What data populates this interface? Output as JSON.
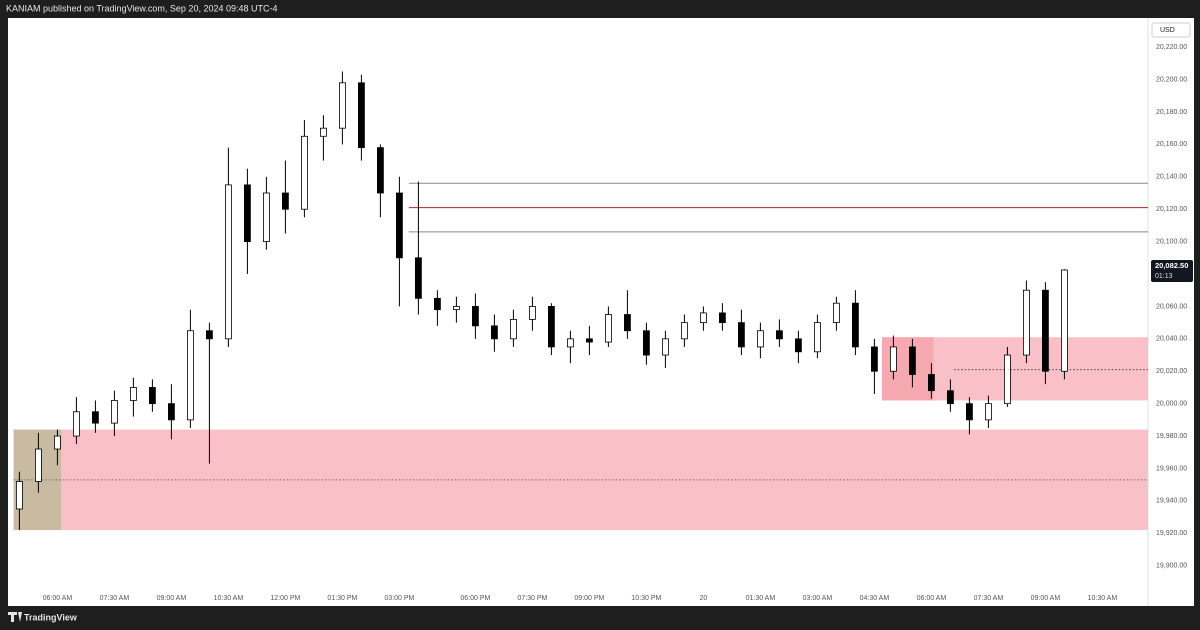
{
  "header": "KANIAM published on TradingView.com, Sep 20, 2024 09:48 UTC-4",
  "footer": "TradingView",
  "chart_data": {
    "type": "candlestick",
    "currency": "USD",
    "x": [
      1,
      2,
      3,
      4,
      5,
      6,
      7,
      8,
      9,
      10,
      11,
      12,
      13,
      14,
      15,
      16,
      17,
      18,
      19,
      20,
      21,
      22,
      23,
      24,
      25,
      26,
      27,
      28,
      29,
      30,
      31,
      32,
      33,
      34,
      35,
      36,
      37,
      38,
      39,
      40,
      41,
      42,
      43,
      44,
      45,
      46,
      47,
      48,
      49,
      50,
      51,
      52,
      53,
      54,
      55,
      56
    ],
    "open": [
      19935,
      19952,
      19972,
      19980,
      19995,
      19988,
      20002,
      20010,
      20000,
      19990,
      20045,
      20040,
      20135,
      20100,
      20130,
      20120,
      20165,
      20170,
      20198,
      20158,
      20130,
      20090,
      20065,
      20058,
      20060,
      20048,
      20040,
      20052,
      20060,
      20035,
      20040,
      20038,
      20055,
      20045,
      20030,
      20040,
      20050,
      20056,
      20050,
      20035,
      20045,
      20040,
      20032,
      20050,
      20062,
      20035,
      20020,
      20035,
      20018,
      20008,
      20000,
      19990,
      20000,
      20030,
      20070,
      20020
    ],
    "high": [
      19958,
      19982,
      19984,
      20004,
      20002,
      20008,
      20016,
      20015,
      20012,
      20058,
      20050,
      20158,
      20145,
      20140,
      20150,
      20175,
      20178,
      20205,
      20203,
      20160,
      20140,
      20137,
      20070,
      20066,
      20068,
      20055,
      20058,
      20066,
      20062,
      20045,
      20048,
      20060,
      20070,
      20050,
      20045,
      20055,
      20060,
      20062,
      20058,
      20050,
      20052,
      20045,
      20055,
      20066,
      20070,
      20040,
      20042,
      20040,
      20025,
      20015,
      20004,
      20005,
      20035,
      20076,
      20075,
      20083
    ],
    "low": [
      19922,
      19945,
      19962,
      19975,
      19982,
      19980,
      19992,
      19995,
      19978,
      19985,
      19963,
      20035,
      20080,
      20095,
      20105,
      20115,
      20150,
      20160,
      20150,
      20115,
      20060,
      20055,
      20048,
      20050,
      20040,
      20032,
      20035,
      20045,
      20030,
      20025,
      20030,
      20035,
      20040,
      20024,
      20022,
      20035,
      20045,
      20045,
      20030,
      20028,
      20035,
      20025,
      20028,
      20045,
      20030,
      20006,
      20015,
      20010,
      20003,
      19995,
      19981,
      19985,
      19998,
      20025,
      20012,
      20015
    ],
    "close": [
      19952,
      19972,
      19980,
      19995,
      19988,
      20002,
      20010,
      20000,
      19990,
      20045,
      20040,
      20135,
      20100,
      20130,
      20120,
      20165,
      20170,
      20198,
      20158,
      20130,
      20090,
      20065,
      20058,
      20060,
      20048,
      20040,
      20052,
      20060,
      20035,
      20040,
      20038,
      20055,
      20045,
      20030,
      20040,
      20050,
      20056,
      20050,
      20035,
      20045,
      20040,
      20032,
      20050,
      20062,
      20035,
      20020,
      20035,
      20018,
      20008,
      20000,
      19990,
      20000,
      20030,
      20070,
      20020,
      20082.5
    ],
    "up_color": "#ffffff",
    "down_color": "#000000",
    "wick_color": "#000000",
    "xlim": [
      0.4,
      60.4
    ],
    "xticks": [
      {
        "value": 3,
        "label": "06:00 AM"
      },
      {
        "value": 6,
        "label": "07:30 AM"
      },
      {
        "value": 9,
        "label": "09:00 AM"
      },
      {
        "value": 12,
        "label": "10:30 AM"
      },
      {
        "value": 15,
        "label": "12:00 PM"
      },
      {
        "value": 18,
        "label": "01:30 PM"
      },
      {
        "value": 21,
        "label": "03:00 PM"
      },
      {
        "value": 25,
        "label": "06:00 PM"
      },
      {
        "value": 28,
        "label": "07:30 PM"
      },
      {
        "value": 31,
        "label": "09:00 PM"
      },
      {
        "value": 34,
        "label": "10:30 PM"
      },
      {
        "value": 37,
        "label": "20"
      },
      {
        "value": 40,
        "label": "01:30 AM"
      },
      {
        "value": 43,
        "label": "03:00 AM"
      },
      {
        "value": 46,
        "label": "04:30 AM"
      },
      {
        "value": 49,
        "label": "06:00 AM"
      },
      {
        "value": 52,
        "label": "07:30 AM"
      },
      {
        "value": 55,
        "label": "09:00 AM"
      },
      {
        "value": 58,
        "label": "10:30 AM"
      }
    ],
    "ylim": [
      19885,
      20238
    ],
    "yticks": [
      {
        "value": 19900,
        "label": "19,900.00"
      },
      {
        "value": 19920,
        "label": "19,920.00"
      },
      {
        "value": 19940,
        "label": "19,940.00"
      },
      {
        "value": 19960,
        "label": "19,960.00"
      },
      {
        "value": 19980,
        "label": "19,980.00"
      },
      {
        "value": 20000,
        "label": "20,000.00"
      },
      {
        "value": 20020,
        "label": "20,020.00"
      },
      {
        "value": 20040,
        "label": "20,040.00"
      },
      {
        "value": 20060,
        "label": "20,060.00"
      },
      {
        "value": 20080,
        "label": "20,080.00"
      },
      {
        "value": 20100,
        "label": "20,100.00"
      },
      {
        "value": 20120,
        "label": "20,120.00"
      },
      {
        "value": 20140,
        "label": "20,140.00"
      },
      {
        "value": 20160,
        "label": "20,160.00"
      },
      {
        "value": 20180,
        "label": "20,180.00"
      },
      {
        "value": 20200,
        "label": "20,200.00"
      },
      {
        "value": 20220,
        "label": "20,220.00"
      }
    ],
    "last_price": {
      "value": 20082.5,
      "label": "20,082.50"
    },
    "countdown": "01:13",
    "zones": [
      {
        "top": 19984,
        "bottom": 19922,
        "from": 0.7,
        "color": "#f9c1c7"
      },
      {
        "top": 19984,
        "bottom": 19922,
        "from": 0.7,
        "to": 3.2,
        "color": "#c8bba1"
      },
      {
        "top": 20041,
        "bottom": 20002,
        "from": 46.4,
        "color": "#f9c1c7"
      },
      {
        "top": 20041,
        "bottom": 20002,
        "from": 46.4,
        "to": 49.1,
        "color": "#f7a9b1"
      }
    ],
    "hlines": [
      {
        "value": 20136,
        "from": 21.5,
        "color": "#888888",
        "style": "solid"
      },
      {
        "value": 20121,
        "from": 21.5,
        "color": "#b22222",
        "style": "solid"
      },
      {
        "value": 20106,
        "from": 21.5,
        "color": "#888888",
        "style": "solid"
      },
      {
        "value": 19953,
        "from": 0.7,
        "color": "#6b7a3a",
        "style": "dotted"
      },
      {
        "value": 20021,
        "from": 50.2,
        "color": "#444444",
        "style": "dotted"
      }
    ]
  }
}
